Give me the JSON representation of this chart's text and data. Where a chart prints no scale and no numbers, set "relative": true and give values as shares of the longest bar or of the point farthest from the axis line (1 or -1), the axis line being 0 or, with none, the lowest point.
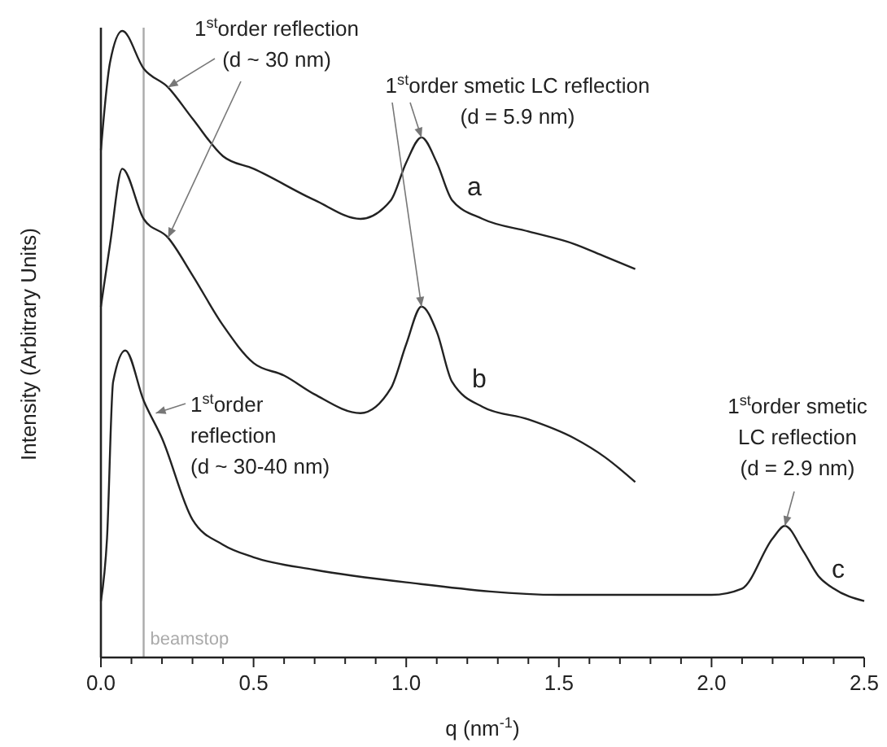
{
  "chart_data": {
    "type": "line",
    "relative": true,
    "xlabel": "q (nm$^{-1}$)",
    "ylabel": "Intensity (Arbitrary Units)",
    "xlim": [
      0,
      2.5
    ],
    "xticks": [
      {
        "value": 0,
        "label": "0.0"
      },
      {
        "value": 0.1,
        "label": null
      },
      {
        "value": 0.2,
        "label": null
      },
      {
        "value": 0.3,
        "label": null
      },
      {
        "value": 0.4,
        "label": null
      },
      {
        "value": 0.5,
        "label": "0.5"
      },
      {
        "value": 0.6,
        "label": null
      },
      {
        "value": 0.7,
        "label": null
      },
      {
        "value": 0.8,
        "label": null
      },
      {
        "value": 0.9,
        "label": null
      },
      {
        "value": 1,
        "label": "1.0"
      },
      {
        "value": 1.1,
        "label": null
      },
      {
        "value": 1.2,
        "label": null
      },
      {
        "value": 1.3,
        "label": null
      },
      {
        "value": 1.4,
        "label": null
      },
      {
        "value": 1.5,
        "label": "1.5"
      },
      {
        "value": 1.6,
        "label": null
      },
      {
        "value": 1.7,
        "label": null
      },
      {
        "value": 1.8,
        "label": null
      },
      {
        "value": 1.9,
        "label": null
      },
      {
        "value": 2,
        "label": "2.0"
      },
      {
        "value": 2.1,
        "label": null
      },
      {
        "value": 2.2,
        "label": null
      },
      {
        "value": 2.3,
        "label": null
      },
      {
        "value": 2.4,
        "label": null
      },
      {
        "value": 2.5,
        "label": "2.5"
      }
    ],
    "series": [
      {
        "name": "a",
        "color": "#222222",
        "x": [
          0,
          0.03,
          0.07,
          0.14,
          0.22,
          0.3,
          0.4,
          0.5,
          0.7,
          0.85,
          0.95,
          1.0,
          1.05,
          1.1,
          1.15,
          1.25,
          1.4,
          1.55,
          1.65,
          1.75
        ],
        "values": [
          0.81,
          0.95,
          1.0,
          0.94,
          0.91,
          0.86,
          0.8,
          0.78,
          0.73,
          0.7,
          0.73,
          0.79,
          0.83,
          0.79,
          0.73,
          0.7,
          0.68,
          0.66,
          0.64,
          0.62
        ]
      },
      {
        "name": "b",
        "color": "#222222",
        "x": [
          0,
          0.03,
          0.07,
          0.14,
          0.22,
          0.3,
          0.4,
          0.5,
          0.6,
          0.7,
          0.85,
          0.95,
          1.0,
          1.05,
          1.1,
          1.15,
          1.25,
          1.4,
          1.55,
          1.65,
          1.75
        ],
        "values": [
          0.56,
          0.66,
          0.78,
          0.7,
          0.67,
          0.61,
          0.53,
          0.47,
          0.45,
          0.42,
          0.39,
          0.43,
          0.5,
          0.56,
          0.52,
          0.44,
          0.4,
          0.38,
          0.35,
          0.32,
          0.28
        ]
      },
      {
        "name": "c",
        "color": "#222222",
        "x": [
          0,
          0.02,
          0.04,
          0.08,
          0.14,
          0.2,
          0.3,
          0.4,
          0.5,
          0.7,
          1.0,
          1.5,
          2.0,
          2.1,
          2.2,
          2.24,
          2.3,
          2.35,
          2.4,
          2.5
        ],
        "values": [
          0.09,
          0.19,
          0.44,
          0.49,
          0.41,
          0.35,
          0.22,
          0.18,
          0.16,
          0.14,
          0.12,
          0.1,
          0.1,
          0.11,
          0.19,
          0.21,
          0.17,
          0.13,
          0.11,
          0.09
        ]
      }
    ],
    "ref_lines": [
      {
        "axis": "x",
        "value": 0.14,
        "label": "beamstop",
        "color": "#aaaaaa"
      }
    ],
    "annotations": [
      {
        "text": "1$^{st}$order reflection\n(d ~ 30 nm)",
        "x": 0.22,
        "y": 0.91
      },
      {
        "text": "1$^{st}$order smetic LC reflection\n(d = 5.9 nm)",
        "x": 1.05,
        "y": 0.83
      },
      {
        "text": "1$^{st}$order\nreflection\n(d ~ 30-40 nm)",
        "x": 0.18,
        "y": 0.39
      },
      {
        "text": "1$^{st}$order smetic\nLC reflection\n(d = 2.9 nm)",
        "x": 2.24,
        "y": 0.21
      }
    ],
    "grid": false
  }
}
